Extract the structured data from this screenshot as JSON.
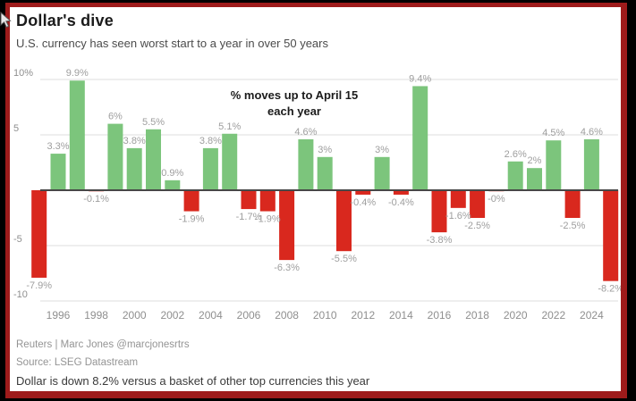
{
  "page": {
    "title": "Dollar's dive",
    "subtitle": "U.S. currency has seen worst start to a year in over 50 years",
    "footer": {
      "credit": "Reuters | Marc Jones @marcjonesrtrs",
      "source": "Source: LSEG Datastream",
      "note": "Dollar is down 8.2% versus a basket of other top currencies this year"
    }
  },
  "colors": {
    "positive": "#7cc57c",
    "negative": "#d9281e",
    "frame": "#9e1b1b",
    "grid": "#dcdcdc",
    "zero_line": "#474747",
    "value_label": "#9e9e9e",
    "tick_label": "#8f8f8f",
    "annotation": "#1b1b1b"
  },
  "chart_data": {
    "type": "bar",
    "title": "Dollar's dive",
    "subtitle": "U.S. currency has seen worst start to a year in over 50 years",
    "annotation": [
      "% moves up to April 15",
      "each year"
    ],
    "x": [
      1995,
      1996,
      1997,
      1998,
      1999,
      2000,
      2001,
      2002,
      2003,
      2004,
      2005,
      2006,
      2007,
      2008,
      2009,
      2010,
      2011,
      2012,
      2013,
      2014,
      2015,
      2016,
      2017,
      2018,
      2019,
      2020,
      2021,
      2022,
      2023,
      2024,
      2025
    ],
    "values": [
      -7.9,
      3.3,
      9.9,
      -0.1,
      6,
      3.8,
      5.5,
      0.9,
      -1.9,
      3.8,
      5.1,
      -1.7,
      -1.9,
      -6.3,
      4.6,
      3,
      -5.5,
      -0.4,
      3,
      -0.4,
      9.4,
      -3.8,
      -1.6,
      -2.5,
      -0.0,
      2.6,
      2,
      4.5,
      -2.5,
      4.6,
      -8.2
    ],
    "labels": [
      "-7.9%",
      "3.3%",
      "9.9%",
      "-0.1%",
      "6%",
      "3.8%",
      "5.5%",
      "0.9%",
      "-1.9%",
      "3.8%",
      "5.1%",
      "-1.7%",
      "-1.9%",
      "-6.3%",
      "4.6%",
      "3%",
      "-5.5%",
      "-0.4%",
      "3%",
      "-0.4%",
      "9.4%",
      "-3.8%",
      "-1.6%",
      "-2.5%",
      "-0%",
      "2.6%",
      "2%",
      "4.5%",
      "-2.5%",
      "4.6%",
      "-8.2%"
    ],
    "x_tick_labels": [
      "1996",
      "1998",
      "2000",
      "2002",
      "2004",
      "2006",
      "2008",
      "2010",
      "2012",
      "2014",
      "2016",
      "2018",
      "2020",
      "2022",
      "2024"
    ],
    "y_ticks": [
      10,
      5,
      -5,
      -10
    ],
    "y_tick_labels": [
      "10%",
      "5",
      "-5",
      "-10"
    ],
    "ylim": [
      -10.5,
      10.8
    ],
    "xlabel": "",
    "ylabel": "",
    "grid": true,
    "legend": "none",
    "positive_color": "#7cc57c",
    "negative_color": "#d9281e"
  }
}
